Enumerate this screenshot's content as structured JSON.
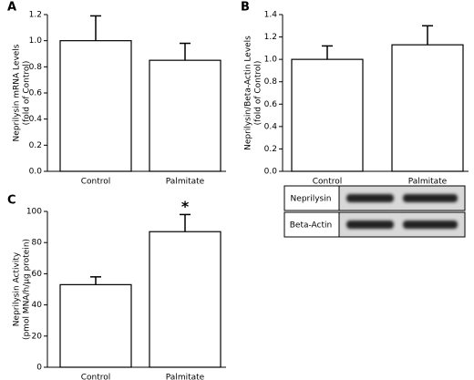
{
  "chart_data": [
    {
      "type": "bar",
      "panel": "A",
      "ylabel": [
        "Neprilysin mRNA Levels",
        "(fold of Control)"
      ],
      "categories": [
        "Control",
        "Palmitate"
      ],
      "values": [
        1.0,
        0.85
      ],
      "errors": [
        0.19,
        0.13
      ],
      "color": "#ffffff",
      "ylim": [
        0,
        1.2
      ],
      "yticks": [
        {
          "value": 0,
          "label": "0.0"
        },
        0.2,
        0.4,
        0.6,
        0.8,
        {
          "value": 1,
          "label": "1.0"
        },
        1.2
      ]
    },
    {
      "type": "bar",
      "panel": "B",
      "ylabel": [
        "Neprilysin/Beta-Actin Levels",
        "(fold of Control)"
      ],
      "categories": [
        "Control",
        "Palmitate"
      ],
      "values": [
        1.0,
        1.13
      ],
      "errors": [
        0.12,
        0.17
      ],
      "color": "#ffffff",
      "ylim": [
        0,
        1.4
      ],
      "yticks": [
        {
          "value": 0,
          "label": "0.0"
        },
        0.2,
        0.4,
        0.6,
        0.8,
        {
          "value": 1,
          "label": "1.0"
        },
        1.2,
        1.4
      ],
      "blot_labels": [
        "Neprilysin",
        "Beta-Actin"
      ]
    },
    {
      "type": "bar",
      "panel": "C",
      "ylabel": [
        "Neprilysin Activity",
        "(pmol MNA/h/µg protein)"
      ],
      "categories": [
        "Control",
        "Palmitate"
      ],
      "values": [
        53,
        87
      ],
      "errors": [
        5,
        11
      ],
      "color": "#ffffff",
      "ylim": [
        0,
        100
      ],
      "yticks": [
        0,
        20,
        40,
        60,
        80,
        100
      ],
      "annotation": "*"
    }
  ]
}
